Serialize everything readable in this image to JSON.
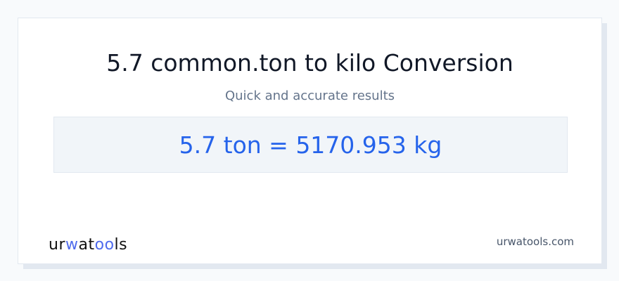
{
  "header": {
    "title": "5.7 common.ton to kilo Conversion",
    "subtitle": "Quick and accurate results"
  },
  "result": {
    "text": "5.7 ton = 5170.953 kg"
  },
  "footer": {
    "logo_text": "urwatools",
    "site": "urwatools.com"
  },
  "colors": {
    "accent": "#2563eb",
    "logo_accent": "#4f6bed",
    "background": "#f8fafc"
  }
}
